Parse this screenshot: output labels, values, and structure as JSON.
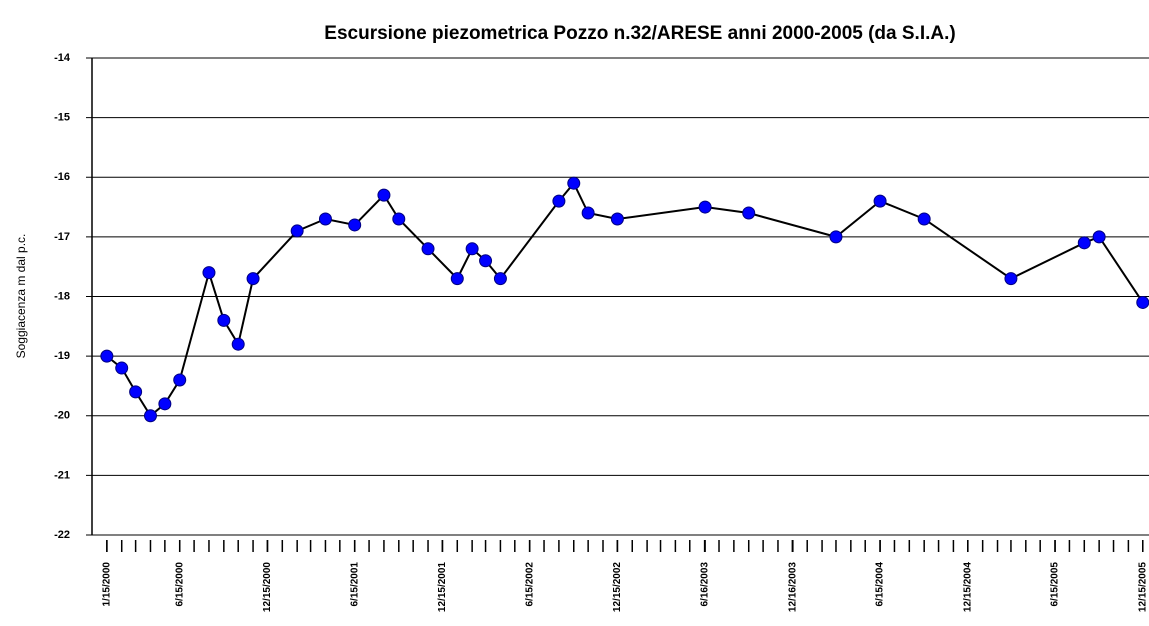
{
  "chart_data": {
    "type": "line",
    "title": "Escursione piezometrica Pozzo n.32/ARESE anni 2000-2005 (da S.I.A.)",
    "y_label": "Soggiacenza  m dal p.c.",
    "x": [
      "1/15/2000",
      "2/15/2000",
      "3/15/2000",
      "4/15/2000",
      "5/15/2000",
      "6/15/2000",
      "8/15/2000",
      "9/15/2000",
      "10/15/2000",
      "11/15/2000",
      "2/15/2001",
      "4/15/2001",
      "6/15/2001",
      "8/15/2001",
      "9/15/2001",
      "11/15/2001",
      "1/15/2002",
      "2/15/2002",
      "3/15/2002",
      "4/15/2002",
      "8/15/2002",
      "9/15/2002",
      "10/15/2002",
      "12/15/2002",
      "6/16/2003",
      "9/15/2003",
      "3/15/2004",
      "6/15/2004",
      "9/15/2004",
      "3/15/2005",
      "8/15/2005",
      "9/15/2005",
      "12/15/2005"
    ],
    "series": [
      {
        "name": "Soggiacenza",
        "color": "#0000ff",
        "line_color": "#000000",
        "values": [
          -19.0,
          -19.2,
          -19.6,
          -20.0,
          -19.8,
          -19.4,
          -17.6,
          -18.4,
          -18.8,
          -17.7,
          -16.9,
          -16.7,
          -16.8,
          -16.3,
          -16.7,
          -17.2,
          -17.7,
          -17.2,
          -17.4,
          -17.7,
          -16.4,
          -16.1,
          -16.6,
          -16.7,
          -16.5,
          -16.6,
          -17.0,
          -16.4,
          -16.7,
          -17.7,
          -17.1,
          -17.0,
          -18.1
        ]
      }
    ],
    "xlim": [
      "12/15/1999",
      "12/28/2005"
    ],
    "xticks": [
      "1/15/2000",
      "6/15/2000",
      "12/15/2000",
      "6/15/2001",
      "12/15/2001",
      "6/15/2002",
      "12/15/2002",
      "6/16/2003",
      "12/16/2003",
      "6/15/2004",
      "12/15/2004",
      "6/15/2005",
      "12/15/2005"
    ],
    "ylim": [
      -22,
      -14
    ],
    "yticks": [
      -22,
      -21,
      -20,
      -19,
      -18,
      -17,
      -16,
      -15,
      -14
    ],
    "grid": true
  }
}
